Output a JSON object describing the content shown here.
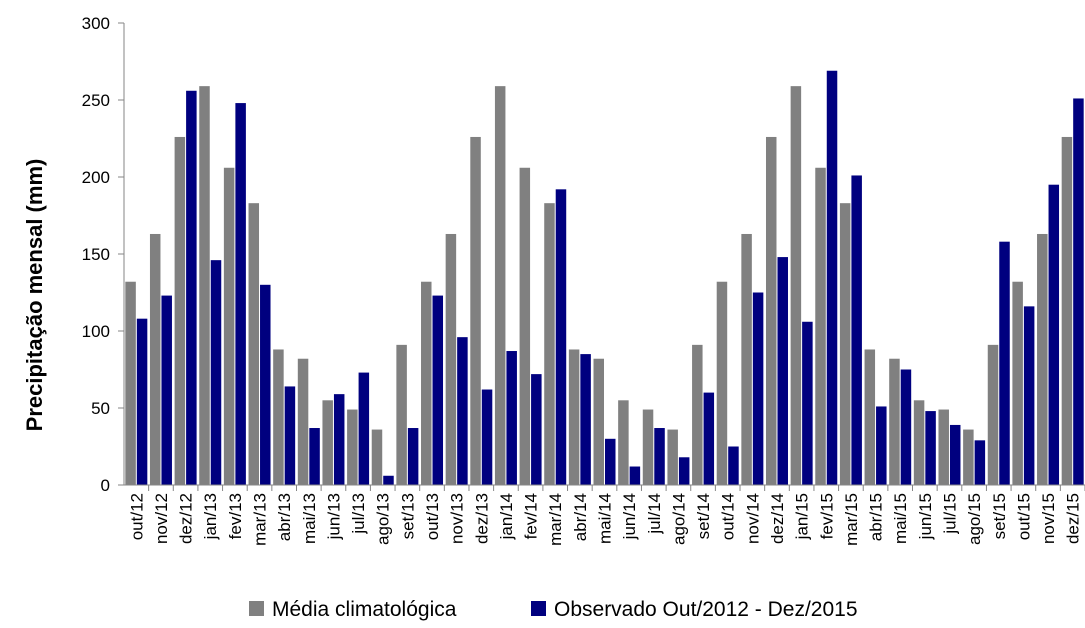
{
  "chart_data": {
    "type": "bar",
    "ylabel": "Precipitação mensal (mm)",
    "xlabel": "",
    "ylim": [
      0,
      300
    ],
    "yticks": [
      0,
      50,
      100,
      150,
      200,
      250,
      300
    ],
    "grid": false,
    "legend_position": "bottom",
    "categories": [
      "out/12",
      "nov/12",
      "dez/12",
      "jan/13",
      "fev/13",
      "mar/13",
      "abr/13",
      "mai/13",
      "jun/13",
      "jul/13",
      "ago/13",
      "set/13",
      "out/13",
      "nov/13",
      "dez/13",
      "jan/14",
      "fev/14",
      "mar/14",
      "abr/14",
      "mai/14",
      "jun/14",
      "jul/14",
      "ago/14",
      "set/14",
      "out/14",
      "nov/14",
      "dez/14",
      "jan/15",
      "fev/15",
      "mar/15",
      "abr/15",
      "mai/15",
      "jun/15",
      "jul/15",
      "ago/15",
      "set/15",
      "out/15",
      "nov/15",
      "dez/15"
    ],
    "series": [
      {
        "name": "Média climatológica",
        "color": "#808080",
        "values": [
          132,
          163,
          226,
          259,
          206,
          183,
          88,
          82,
          55,
          49,
          36,
          91,
          132,
          163,
          226,
          259,
          206,
          183,
          88,
          82,
          55,
          49,
          36,
          91,
          132,
          163,
          226,
          259,
          206,
          183,
          88,
          82,
          55,
          49,
          36,
          91,
          132,
          163,
          226
        ]
      },
      {
        "name": "Observado Out/2012 - Dez/2015",
        "color": "#00007f",
        "values": [
          108,
          123,
          256,
          146,
          248,
          130,
          64,
          37,
          59,
          73,
          6,
          37,
          123,
          96,
          62,
          87,
          72,
          192,
          85,
          30,
          12,
          37,
          18,
          60,
          25,
          125,
          148,
          106,
          269,
          201,
          51,
          75,
          48,
          39,
          29,
          158,
          116,
          195,
          251
        ]
      }
    ]
  }
}
